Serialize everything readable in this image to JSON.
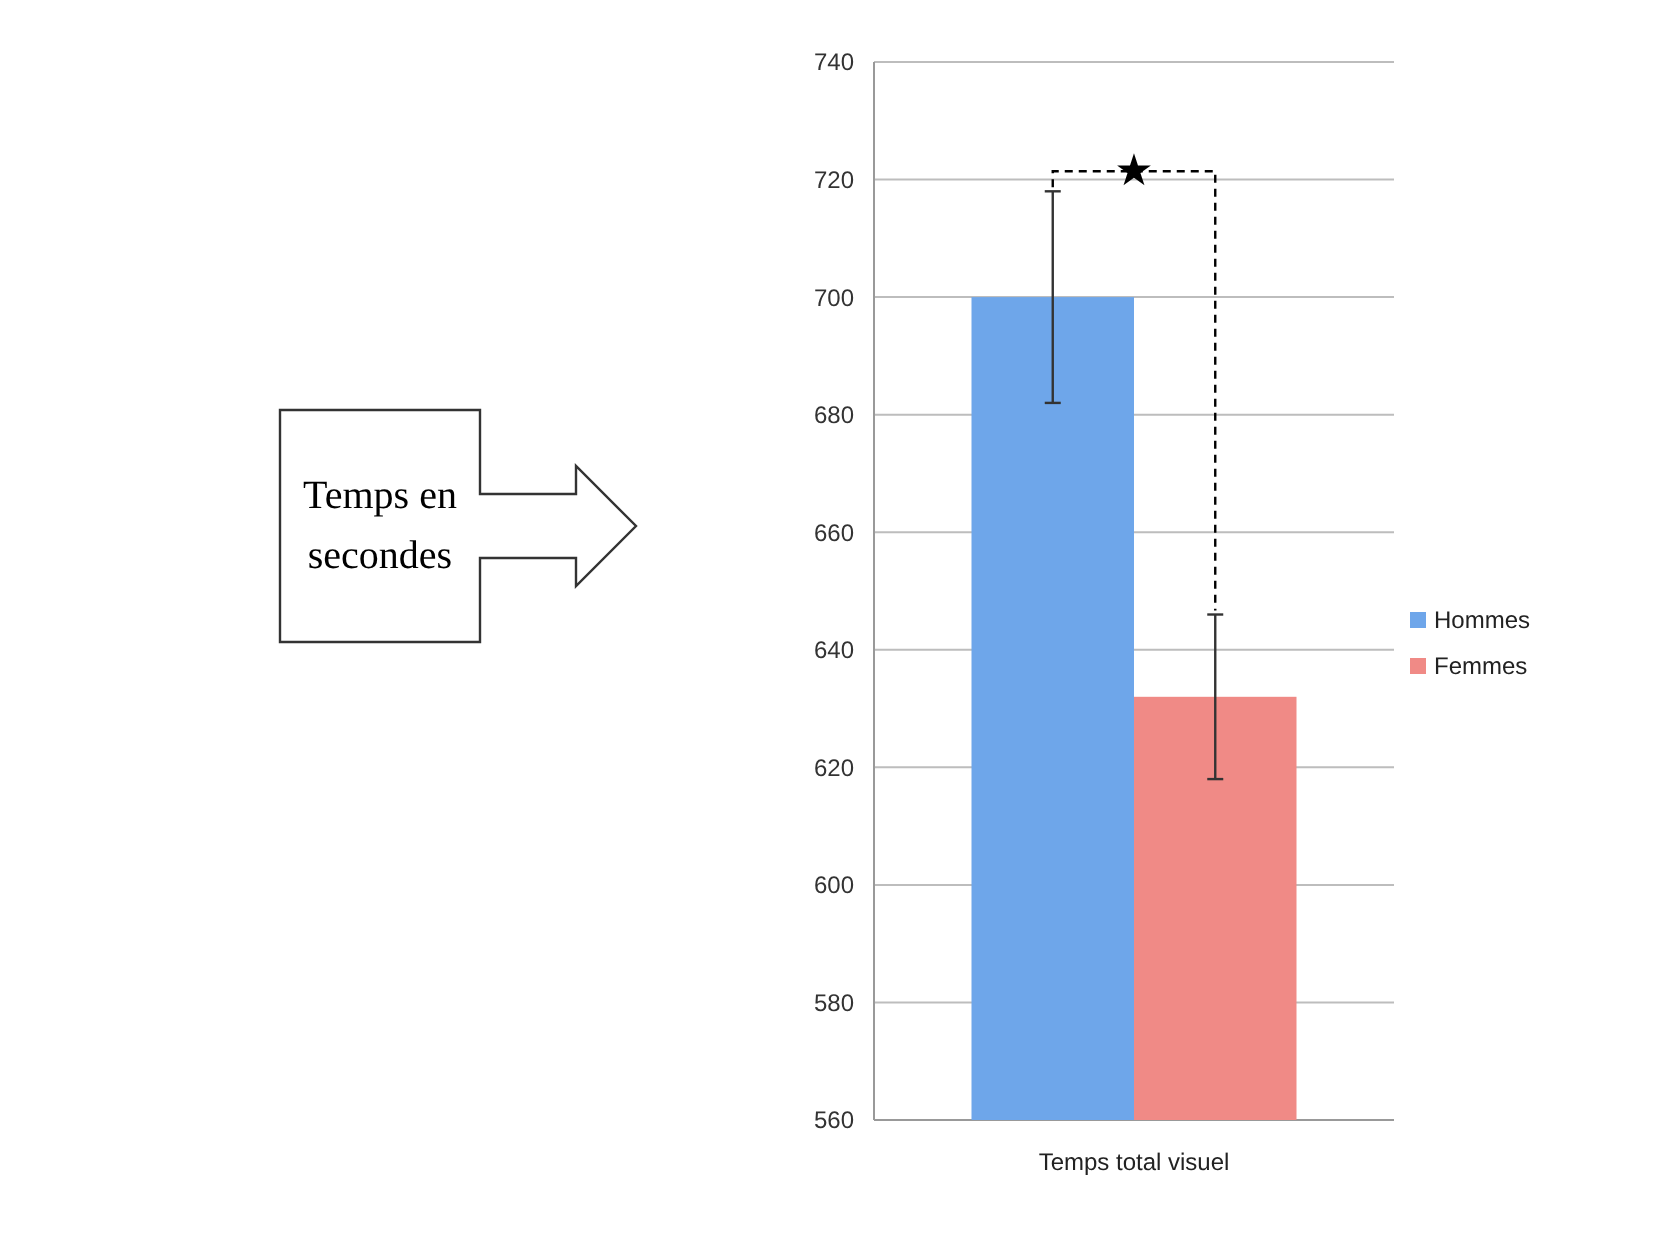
{
  "chart_data": {
    "type": "bar",
    "categories": [
      "Temps total visuel"
    ],
    "series": [
      {
        "name": "Hommes",
        "color": "#6ea6ea",
        "values": [
          700
        ],
        "errors": [
          [
            682,
            718
          ]
        ]
      },
      {
        "name": "Femmes",
        "color": "#f08a86",
        "values": [
          632
        ],
        "errors": [
          [
            618,
            646
          ]
        ]
      }
    ],
    "annotations": [
      "★",
      "Temps en secondes"
    ],
    "ylim": [
      560,
      740
    ],
    "yticks": [
      560,
      580,
      600,
      620,
      640,
      660,
      680,
      700,
      720,
      740
    ],
    "grid": "y",
    "legend": "right"
  }
}
